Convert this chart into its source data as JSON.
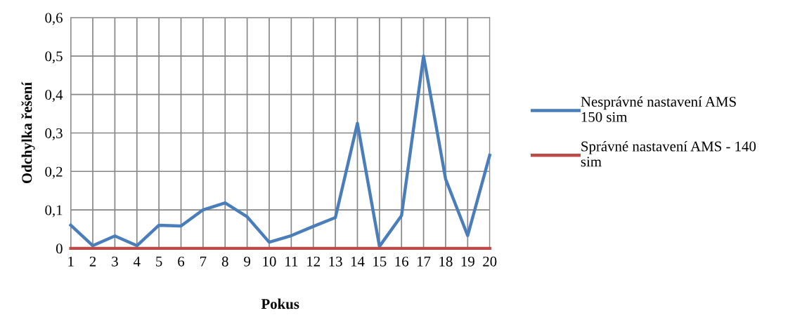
{
  "chart_data": {
    "type": "line",
    "xlabel": "Pokus",
    "ylabel": "Odchylka řešení",
    "categories": [
      "1",
      "2",
      "3",
      "4",
      "5",
      "6",
      "7",
      "8",
      "9",
      "10",
      "11",
      "12",
      "13",
      "14",
      "15",
      "16",
      "17",
      "18",
      "19",
      "20"
    ],
    "series": [
      {
        "name": "Nesprávné nastavení AMS\n150 sim",
        "color": "#4a7ebb",
        "values": [
          0.06,
          0.007,
          0.032,
          0.007,
          0.06,
          0.058,
          0.1,
          0.118,
          0.082,
          0.016,
          0.033,
          0.057,
          0.08,
          0.325,
          0.005,
          0.085,
          0.5,
          0.18,
          0.033,
          0.242
        ]
      },
      {
        "name": "Správné nastavení AMS - 140\nsim",
        "color": "#be4b48",
        "values": [
          0,
          0,
          0,
          0,
          0,
          0,
          0,
          0,
          0,
          0,
          0,
          0,
          0,
          0,
          0,
          0,
          0,
          0,
          0,
          0
        ]
      }
    ],
    "ylim": [
      0,
      0.6
    ],
    "yticks": [
      0,
      {
        "value": 0.1,
        "label": "0,1"
      },
      {
        "value": 0.2,
        "label": "0,2"
      },
      {
        "value": 0.3,
        "label": "0,3"
      },
      {
        "value": 0.4,
        "label": "0,4"
      },
      {
        "value": 0.5,
        "label": "0,5"
      },
      {
        "value": 0.6,
        "label": "0,6"
      }
    ],
    "grid": true,
    "legend": "right",
    "marker": "none",
    "line_style": "solid"
  }
}
